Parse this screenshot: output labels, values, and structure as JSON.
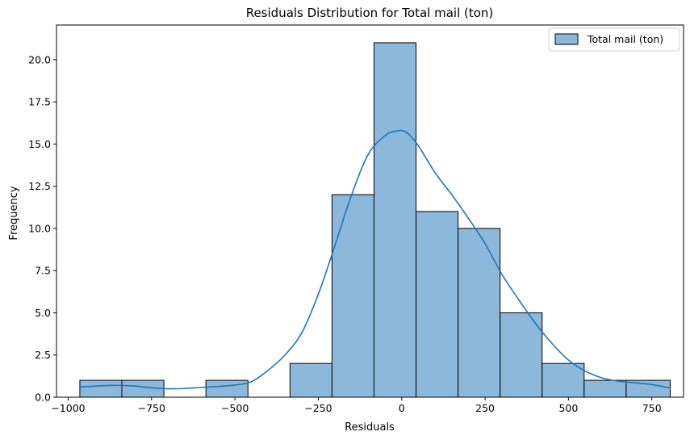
{
  "chart_data": {
    "type": "bar",
    "title": "Residuals Distribution for Total mail (ton)",
    "xlabel": "Residuals",
    "ylabel": "Frequency",
    "xlim": [
      -1035,
      845
    ],
    "ylim": [
      0,
      22.05
    ],
    "bin_edges": [
      -965,
      -839,
      -713,
      -587,
      -461,
      -335,
      -209,
      -83,
      43,
      169,
      295,
      421,
      547,
      673,
      805
    ],
    "series": [
      {
        "name": "Total mail (ton)",
        "values": [
          1,
          1,
          0,
          1,
          0,
          2,
          12,
          21,
          11,
          10,
          5,
          2,
          1,
          1
        ],
        "bar_color": "#8cb8dc",
        "edge_color": "#000000"
      }
    ],
    "kde": {
      "color": "#1f77b4",
      "x": [
        -965,
        -900,
        -850,
        -800,
        -750,
        -700,
        -650,
        -600,
        -550,
        -500,
        -450,
        -400,
        -350,
        -300,
        -250,
        -200,
        -150,
        -100,
        -50,
        -20,
        0,
        20,
        50,
        100,
        150,
        200,
        250,
        300,
        350,
        400,
        450,
        500,
        550,
        600,
        650,
        700,
        750,
        805
      ],
      "y": [
        0.6,
        0.68,
        0.7,
        0.66,
        0.56,
        0.5,
        0.52,
        0.58,
        0.64,
        0.72,
        0.92,
        1.6,
        2.5,
        3.8,
        6.1,
        9.0,
        12.0,
        14.4,
        15.5,
        15.75,
        15.8,
        15.6,
        14.9,
        13.3,
        12.0,
        10.6,
        9.1,
        7.3,
        5.8,
        4.4,
        3.2,
        2.2,
        1.55,
        1.15,
        0.95,
        0.85,
        0.75,
        0.55
      ]
    },
    "x_ticks": [
      -1000,
      -750,
      -500,
      -250,
      0,
      250,
      500,
      750
    ],
    "x_tick_labels": [
      "−1000",
      "−750",
      "−500",
      "−250",
      "0",
      "250",
      "500",
      "750"
    ],
    "y_ticks": [
      0,
      2.5,
      5,
      7.5,
      10,
      12.5,
      15,
      17.5,
      20
    ],
    "y_tick_labels": [
      "0.0",
      "2.5",
      "5.0",
      "7.5",
      "10.0",
      "12.5",
      "15.0",
      "17.5",
      "20.0"
    ],
    "legend": {
      "position": "top-right",
      "entries": [
        "Total mail (ton)"
      ]
    },
    "grid": false
  }
}
